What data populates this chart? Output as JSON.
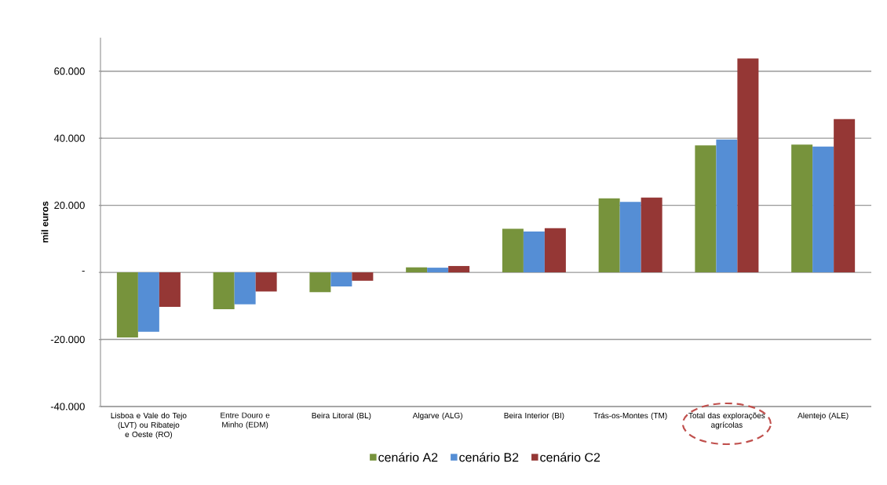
{
  "chart_data": {
    "type": "bar",
    "ylabel": "mil euros",
    "categories": [
      "Lisboa e Vale do Tejo (LVT) ou Ribatejo e Oeste (RO)",
      "Entre Douro e Minho (EDM)",
      "Beira Litoral (BL)",
      "Algarve (ALG)",
      "Beira Interior (BI)",
      "Trás-os-Montes (TM)",
      "Total das explorações agrícolas",
      "Alentejo (ALE)"
    ],
    "series": [
      {
        "name": "cenário A2",
        "color": "#77933c",
        "values": [
          -19400,
          -11000,
          -5900,
          1500,
          13000,
          22100,
          37900,
          38100
        ]
      },
      {
        "name": "cenário B2",
        "color": "#558ed5",
        "values": [
          -17700,
          -9500,
          -4200,
          1400,
          12200,
          21000,
          39600,
          37500
        ]
      },
      {
        "name": "cenário C2",
        "color": "#953735",
        "values": [
          -10300,
          -5700,
          -2500,
          1900,
          13200,
          22300,
          63800,
          45700
        ]
      }
    ],
    "ylim": [
      -40000,
      70000
    ],
    "yticks": [
      {
        "value": -40000,
        "label": "-40.000"
      },
      {
        "value": -20000,
        "label": "-20.000"
      },
      {
        "value": 0,
        "label": "-"
      },
      {
        "value": 20000,
        "label": "20.000"
      },
      {
        "value": 40000,
        "label": "40.000"
      },
      {
        "value": 60000,
        "label": "60.000"
      }
    ],
    "grid": "y",
    "legend": "bottom"
  }
}
